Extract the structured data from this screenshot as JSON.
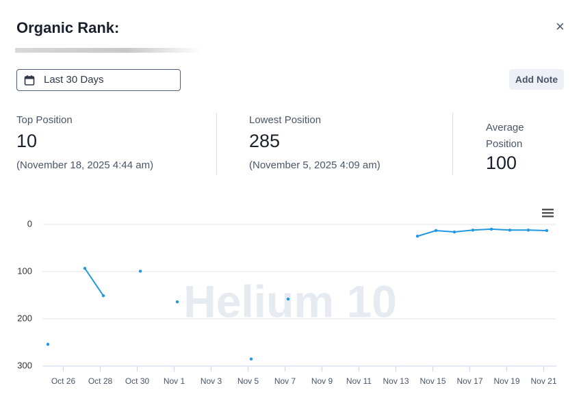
{
  "header": {
    "title": "Organic Rank:",
    "date_range": "Last 30 Days",
    "add_note": "Add Note"
  },
  "stats": [
    {
      "label": "Top Position",
      "value": 10,
      "date": "(November 18, 2025 4:44 am)"
    },
    {
      "label": "Lowest Position",
      "value": 285,
      "date": "(November 5, 2025 4:09 am)"
    },
    {
      "label": "Average Position",
      "value": 100
    }
  ],
  "chart_data": {
    "type": "line",
    "watermark": "Helium 10",
    "color": "#2196e3",
    "reversed": true,
    "grid": true,
    "categories": [
      null,
      "Oct 26",
      null,
      "Oct 28",
      null,
      "Oct 30",
      null,
      "Nov 1",
      null,
      "Nov 3",
      null,
      "Nov 5",
      null,
      "Nov 7",
      null,
      "Nov 9",
      null,
      "Nov 11",
      null,
      "Nov 13",
      null,
      "Nov 15",
      null,
      "Nov 17",
      null,
      "Nov 19",
      null,
      "Nov 21"
    ],
    "values": [
      254,
      null,
      93,
      151,
      null,
      99,
      null,
      164,
      null,
      null,
      null,
      285,
      null,
      158,
      null,
      null,
      null,
      null,
      null,
      null,
      25,
      13,
      16,
      12,
      10,
      12,
      12,
      13
    ],
    "ylim": [
      0,
      300
    ],
    "yticks": [
      0,
      100,
      200,
      300
    ]
  }
}
